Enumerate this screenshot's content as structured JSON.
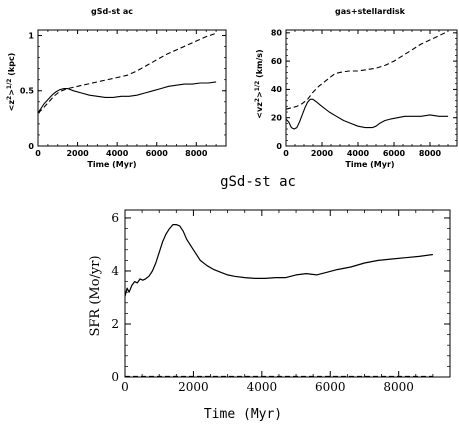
{
  "figure_title": "gSd-st ac",
  "chart_data": [
    {
      "type": "line",
      "title": "gSd-st ac",
      "xlabel": "Time (Myr)",
      "ylabel": "<z²>¹ᐟ² (kpc)",
      "ylabel_parts": {
        "pre": "<z",
        "sup1": "2",
        "mid": ">",
        "sup2": "1/2",
        "unit": " (kpc)"
      },
      "xlim": [
        0,
        9500
      ],
      "ylim": [
        0,
        1.05
      ],
      "x_ticks": [
        0,
        2000,
        4000,
        6000,
        8000
      ],
      "x_tick_labels": [
        "0",
        "2000",
        "4000",
        "6000",
        "8000"
      ],
      "y_ticks": [
        0,
        0.5,
        1
      ],
      "y_tick_labels": [
        "0",
        "0.5",
        "1"
      ],
      "series": [
        {
          "style": "solid",
          "x": [
            0,
            150,
            300,
            500,
            700,
            900,
            1100,
            1300,
            1500,
            1800,
            2200,
            2600,
            3000,
            3400,
            3800,
            4200,
            4600,
            5000,
            5400,
            5800,
            6200,
            6600,
            7000,
            7400,
            7800,
            8200,
            8600,
            9000
          ],
          "y": [
            0.3,
            0.34,
            0.38,
            0.42,
            0.46,
            0.49,
            0.51,
            0.52,
            0.52,
            0.5,
            0.48,
            0.46,
            0.45,
            0.44,
            0.44,
            0.45,
            0.45,
            0.46,
            0.48,
            0.5,
            0.52,
            0.54,
            0.55,
            0.56,
            0.56,
            0.57,
            0.57,
            0.58
          ]
        },
        {
          "style": "dashed",
          "x": [
            0,
            200,
            400,
            600,
            800,
            1000,
            1200,
            1500,
            2000,
            2500,
            3000,
            3500,
            4000,
            4500,
            5000,
            5500,
            6000,
            6500,
            7000,
            7500,
            8000,
            8500,
            9000
          ],
          "y": [
            0.3,
            0.33,
            0.37,
            0.41,
            0.45,
            0.48,
            0.5,
            0.52,
            0.54,
            0.56,
            0.58,
            0.6,
            0.62,
            0.64,
            0.68,
            0.73,
            0.78,
            0.83,
            0.87,
            0.91,
            0.95,
            0.99,
            1.02
          ]
        }
      ]
    },
    {
      "type": "line",
      "title": "gas+stellardisk",
      "xlabel": "Time (Myr)",
      "ylabel_parts": {
        "pre": "<vz",
        "sup1": "2",
        "mid": ">",
        "sup2": "1/2",
        "unit": " (km/s)"
      },
      "xlim": [
        0,
        9500
      ],
      "ylim": [
        0,
        82
      ],
      "x_ticks": [
        0,
        2000,
        4000,
        6000,
        8000
      ],
      "x_tick_labels": [
        "0",
        "2000",
        "4000",
        "6000",
        "8000"
      ],
      "y_ticks": [
        0,
        20,
        40,
        60,
        80
      ],
      "y_tick_labels": [
        "0",
        "20",
        "40",
        "60",
        "80"
      ],
      "series": [
        {
          "style": "solid",
          "x": [
            0,
            150,
            300,
            450,
            600,
            750,
            900,
            1050,
            1200,
            1350,
            1500,
            1700,
            2000,
            2400,
            2800,
            3200,
            3600,
            4000,
            4400,
            4800,
            5000,
            5200,
            5500,
            5800,
            6200,
            6600,
            7000,
            7500,
            8000,
            8500,
            9000
          ],
          "y": [
            19,
            17,
            13,
            12,
            13,
            17,
            22,
            27,
            31,
            33,
            33,
            31,
            28,
            24,
            21,
            18,
            16,
            14,
            13,
            13,
            14,
            16,
            18,
            19,
            20,
            21,
            21,
            21,
            22,
            21,
            21
          ]
        },
        {
          "style": "dashed",
          "x": [
            0,
            300,
            600,
            900,
            1200,
            1500,
            1800,
            2100,
            2400,
            2700,
            3000,
            3500,
            4000,
            4500,
            5000,
            5500,
            6000,
            6500,
            7000,
            7500,
            8000,
            8500,
            9000
          ],
          "y": [
            26,
            27,
            28,
            30,
            33,
            38,
            42,
            45,
            48,
            51,
            52,
            53,
            53,
            54,
            55,
            57,
            60,
            64,
            68,
            72,
            75,
            78,
            81
          ]
        }
      ]
    },
    {
      "type": "line",
      "title": "",
      "xlabel": "Time (Myr)",
      "ylabel": "SFR (Mo/yr)",
      "xlim": [
        0,
        9500
      ],
      "ylim": [
        0,
        6.3
      ],
      "x_ticks": [
        0,
        2000,
        4000,
        6000,
        8000
      ],
      "x_tick_labels": [
        "0",
        "2000",
        "4000",
        "6000",
        "8000"
      ],
      "y_ticks": [
        0,
        2,
        4,
        6
      ],
      "y_tick_labels": [
        "0",
        "2",
        "4",
        "6"
      ],
      "series": [
        {
          "style": "solid",
          "x": [
            0,
            60,
            120,
            200,
            280,
            360,
            440,
            520,
            600,
            700,
            800,
            900,
            1000,
            1100,
            1200,
            1300,
            1400,
            1500,
            1600,
            1700,
            1800,
            2000,
            2200,
            2400,
            2600,
            2800,
            3000,
            3200,
            3500,
            3800,
            4100,
            4400,
            4700,
            5000,
            5300,
            5600,
            5900,
            6200,
            6600,
            7000,
            7400,
            7800,
            8200,
            8600,
            9000
          ],
          "y": [
            3.05,
            3.35,
            3.2,
            3.45,
            3.6,
            3.55,
            3.7,
            3.65,
            3.7,
            3.8,
            4.0,
            4.3,
            4.7,
            5.1,
            5.4,
            5.6,
            5.75,
            5.75,
            5.7,
            5.5,
            5.2,
            4.8,
            4.4,
            4.2,
            4.05,
            3.95,
            3.85,
            3.8,
            3.75,
            3.72,
            3.72,
            3.75,
            3.75,
            3.85,
            3.9,
            3.85,
            3.95,
            4.05,
            4.15,
            4.3,
            4.4,
            4.45,
            4.5,
            4.55,
            4.62
          ]
        },
        {
          "style": "dashed",
          "x": [
            0,
            9000
          ],
          "y": [
            0.02,
            0.02
          ]
        }
      ]
    }
  ]
}
